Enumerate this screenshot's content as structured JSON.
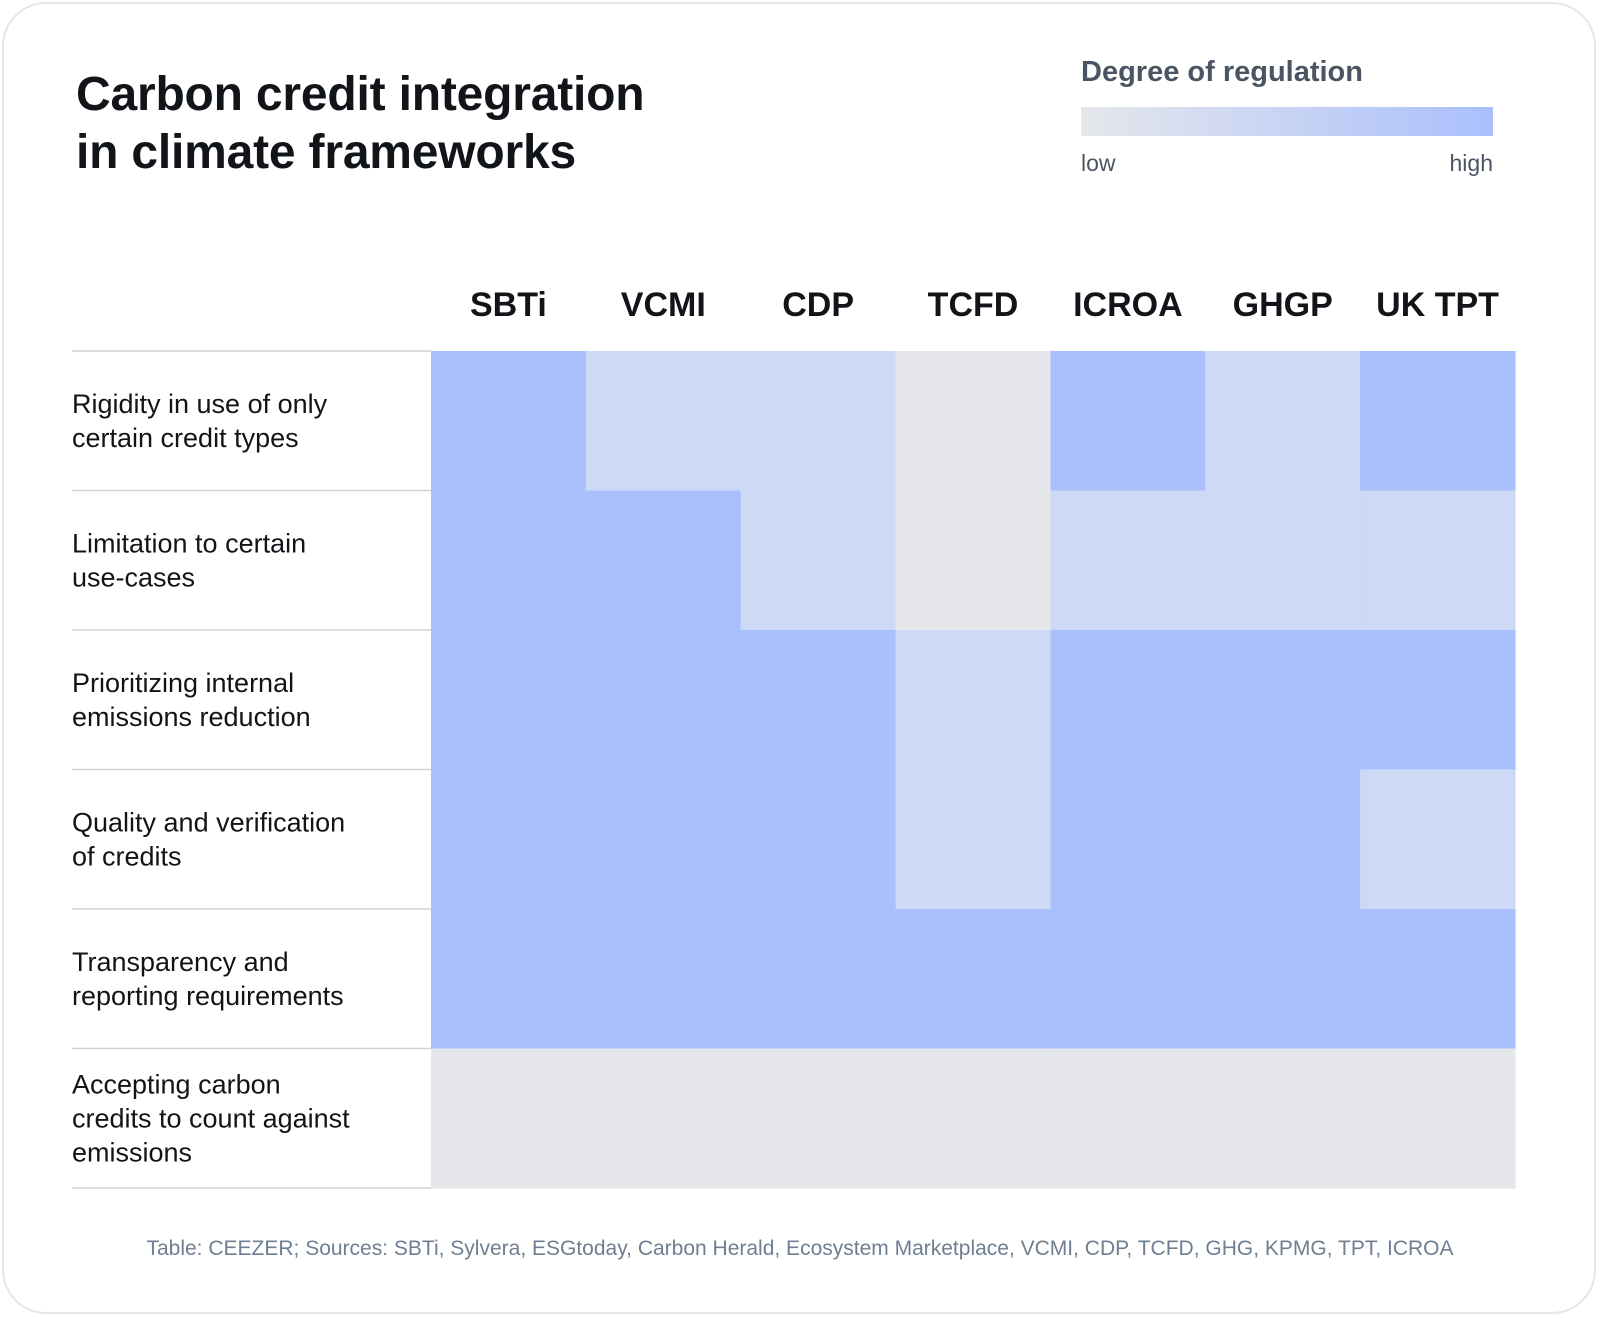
{
  "title_lines": [
    "Carbon credit integration",
    "in climate frameworks"
  ],
  "legend": {
    "title": "Degree of regulation",
    "low_label": "low",
    "high_label": "high",
    "colors": [
      "#e5e7eb",
      "#aac0fd"
    ]
  },
  "source": "Table: CEEZER; Sources: SBTi, Sylvera, ESGtoday, Carbon Herald, Ecosystem Marketplace, VCMI, CDP, TCFD, GHG, KPMG, TPT, ICROA",
  "chart_data": {
    "type": "heatmap",
    "title": "Carbon credit integration in climate frameworks",
    "columns": [
      "SBTi",
      "VCMI",
      "CDP",
      "TCFD",
      "ICROA",
      "GHGP",
      "UK TPT"
    ],
    "rows": [
      [
        "Rigidity in use of only",
        "certain credit types"
      ],
      [
        "Limitation to certain",
        "use-cases"
      ],
      [
        "Prioritizing internal",
        "emissions reduction"
      ],
      [
        "Quality and verification",
        "of credits"
      ],
      [
        "Transparency and",
        "reporting requirements"
      ],
      [
        "Accepting carbon",
        "credits to count against",
        "emissions"
      ]
    ],
    "levels": [
      [
        3,
        2,
        2,
        1,
        3,
        2,
        3
      ],
      [
        3,
        3,
        2,
        1,
        2,
        2,
        2
      ],
      [
        3,
        3,
        3,
        2,
        3,
        3,
        3
      ],
      [
        3,
        3,
        3,
        2,
        3,
        3,
        2
      ],
      [
        3,
        3,
        3,
        3,
        3,
        3,
        3
      ],
      [
        1,
        1,
        1,
        1,
        1,
        1,
        1
      ]
    ],
    "level_colors": {
      "1": "#e5e7eb",
      "2": "#ced9f5",
      "3": "#aac0fd"
    },
    "legend_title": "Degree of regulation",
    "scale": [
      "low",
      "high"
    ]
  }
}
